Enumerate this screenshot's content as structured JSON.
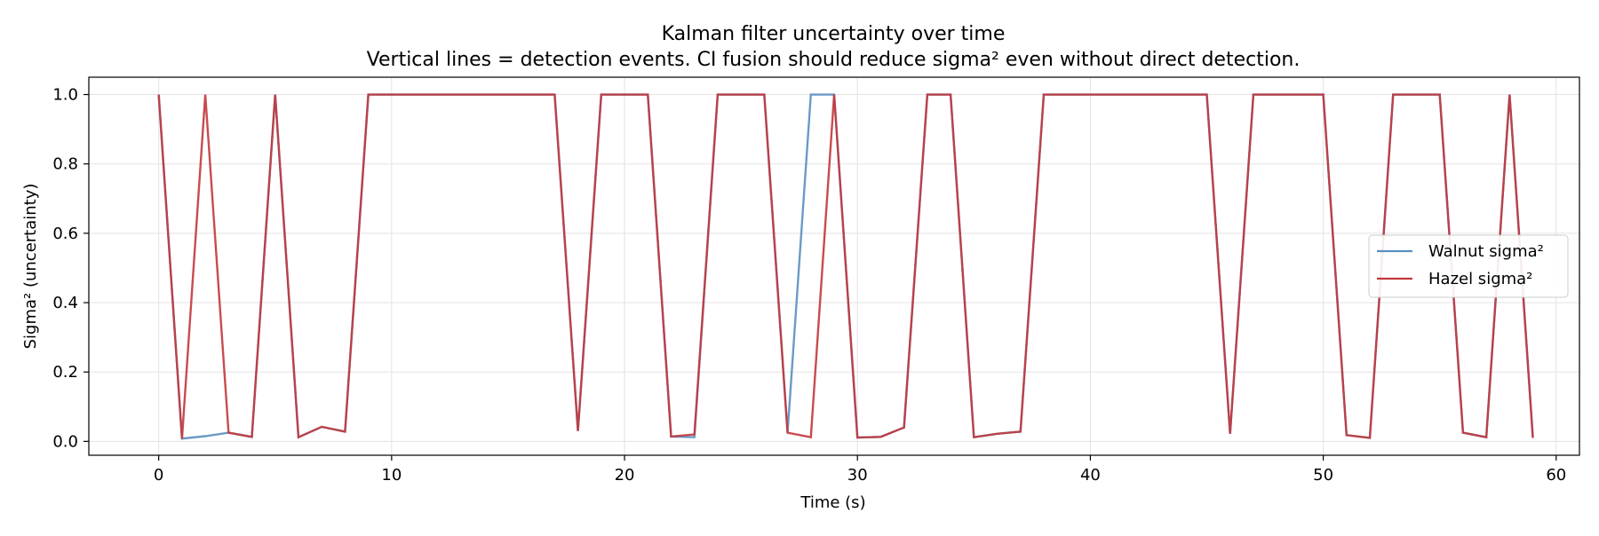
{
  "chart_data": {
    "type": "line",
    "title": "Kalman filter uncertainty over time",
    "subtitle": "Vertical lines = detection events. CI fusion should reduce sigma² even without direct detection.",
    "xlabel": "Time (s)",
    "ylabel": "Sigma² (uncertainty)",
    "xlim": [
      -3,
      61
    ],
    "ylim": [
      -0.04,
      1.05
    ],
    "xticks": [
      0,
      10,
      20,
      30,
      40,
      50,
      60
    ],
    "yticks": [
      0.0,
      0.2,
      0.4,
      0.6,
      0.8,
      1.0
    ],
    "xtick_labels": [
      "0",
      "10",
      "20",
      "30",
      "40",
      "50",
      "60"
    ],
    "ytick_labels": [
      "0.0",
      "0.2",
      "0.4",
      "0.6",
      "0.8",
      "1.0"
    ],
    "grid": true,
    "legend_position": "center-right",
    "x": [
      0,
      1,
      2,
      3,
      4,
      5,
      6,
      7,
      8,
      9,
      10,
      11,
      12,
      13,
      14,
      15,
      16,
      17,
      18,
      19,
      20,
      21,
      22,
      23,
      24,
      25,
      26,
      27,
      28,
      29,
      30,
      31,
      32,
      33,
      34,
      35,
      36,
      37,
      38,
      39,
      40,
      41,
      42,
      43,
      44,
      45,
      46,
      47,
      48,
      49,
      50,
      51,
      52,
      53,
      54,
      55,
      56,
      57,
      58,
      59
    ],
    "series": [
      {
        "name": "Walnut sigma²",
        "color": "#5b8fc0",
        "values": [
          1.0,
          0.008,
          0.015,
          0.025,
          0.013,
          1.0,
          0.012,
          0.042,
          0.028,
          1.0,
          1.0,
          1.0,
          1.0,
          1.0,
          1.0,
          1.0,
          1.0,
          1.0,
          0.03,
          1.0,
          1.0,
          1.0,
          0.014,
          0.012,
          1.0,
          1.0,
          1.0,
          0.025,
          1.0,
          1.0,
          0.011,
          0.013,
          0.04,
          1.0,
          1.0,
          0.012,
          0.022,
          0.028,
          1.0,
          1.0,
          1.0,
          1.0,
          1.0,
          1.0,
          1.0,
          1.0,
          0.022,
          1.0,
          1.0,
          1.0,
          1.0,
          0.018,
          0.01,
          1.0,
          1.0,
          1.0,
          0.025,
          0.012,
          1.0,
          0.01
        ]
      },
      {
        "name": "Hazel sigma²",
        "color": "#c2373c",
        "values": [
          1.0,
          0.008,
          1.0,
          0.025,
          0.013,
          1.0,
          0.012,
          0.042,
          0.028,
          1.0,
          1.0,
          1.0,
          1.0,
          1.0,
          1.0,
          1.0,
          1.0,
          1.0,
          0.03,
          1.0,
          1.0,
          1.0,
          0.014,
          0.02,
          1.0,
          1.0,
          1.0,
          0.025,
          0.012,
          1.0,
          0.011,
          0.013,
          0.04,
          1.0,
          1.0,
          0.012,
          0.022,
          0.028,
          1.0,
          1.0,
          1.0,
          1.0,
          1.0,
          1.0,
          1.0,
          1.0,
          0.022,
          1.0,
          1.0,
          1.0,
          1.0,
          0.018,
          0.01,
          1.0,
          1.0,
          1.0,
          0.025,
          0.012,
          1.0,
          0.01
        ]
      }
    ]
  }
}
